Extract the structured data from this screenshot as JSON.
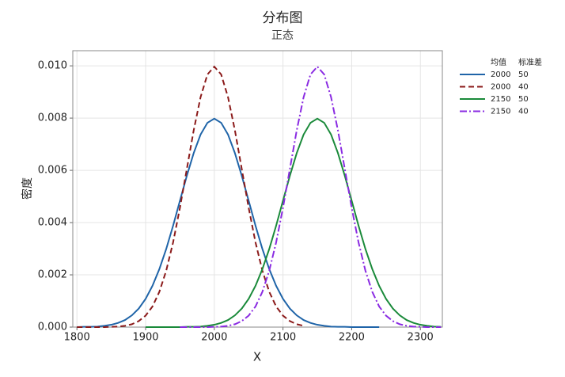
{
  "chart_data": {
    "type": "line",
    "title": "分布图",
    "subtitle": "正态",
    "x_label": "X",
    "y_label": "密度",
    "legend_headers": [
      "均值",
      "标准差"
    ],
    "x": [
      1800,
      1810,
      1820,
      1830,
      1840,
      1850,
      1860,
      1870,
      1880,
      1890,
      1900,
      1910,
      1920,
      1930,
      1940,
      1950,
      1960,
      1970,
      1980,
      1990,
      2000,
      2010,
      2020,
      2030,
      2040,
      2050,
      2060,
      2070,
      2080,
      2090,
      2100,
      2110,
      2120,
      2130,
      2140,
      2150,
      2160,
      2170,
      2180,
      2190,
      2200,
      2210,
      2220,
      2230,
      2240,
      2250,
      2260,
      2270,
      2280,
      2290,
      2300,
      2310,
      2320,
      2330
    ],
    "series": [
      {
        "mean": 2000,
        "sd": 50,
        "color": "#1f64a8",
        "dash": "solid",
        "values": [
          0,
          1e-05,
          1e-05,
          2e-05,
          5e-05,
          9e-05,
          0.00016,
          0.00027,
          0.00045,
          0.00071,
          0.00108,
          0.00158,
          0.00222,
          0.00299,
          0.00388,
          0.00484,
          0.00579,
          0.00666,
          0.00737,
          0.00782,
          0.00798,
          0.00782,
          0.00737,
          0.00666,
          0.00579,
          0.00484,
          0.00388,
          0.00299,
          0.00222,
          0.00158,
          0.00108,
          0.00071,
          0.00045,
          0.00027,
          0.00016,
          9e-05,
          5e-05,
          2e-05,
          1e-05,
          1e-05,
          0,
          0,
          0,
          0,
          0,
          null,
          null,
          null,
          null,
          null,
          null,
          null,
          null,
          null
        ]
      },
      {
        "mean": 2000,
        "sd": 40,
        "color": "#8b1a1a",
        "dash": "dashed",
        "values": [
          0,
          0,
          0,
          0,
          0,
          1e-05,
          2e-05,
          5e-05,
          0.00011,
          0.00023,
          0.00044,
          0.00079,
          0.00135,
          0.00216,
          0.00324,
          0.00457,
          0.00605,
          0.00753,
          0.0088,
          0.00967,
          0.00997,
          0.00967,
          0.0088,
          0.00753,
          0.00605,
          0.00457,
          0.00324,
          0.00216,
          0.00135,
          0.00079,
          0.00044,
          0.00023,
          0.00011,
          5e-05,
          null,
          null,
          null,
          null,
          null,
          null,
          null,
          null,
          null,
          null,
          null,
          null,
          null,
          null,
          null,
          null,
          null,
          null,
          null,
          null
        ]
      },
      {
        "mean": 2150,
        "sd": 50,
        "color": "#1a8a3a",
        "dash": "solid",
        "values": [
          null,
          null,
          null,
          null,
          null,
          null,
          null,
          null,
          null,
          null,
          0,
          0,
          0,
          0,
          0,
          0,
          1e-05,
          1e-05,
          2e-05,
          5e-05,
          9e-05,
          0.00016,
          0.00027,
          0.00045,
          0.00071,
          0.00108,
          0.00158,
          0.00222,
          0.00299,
          0.00388,
          0.00484,
          0.00579,
          0.00666,
          0.00737,
          0.00782,
          0.00798,
          0.00782,
          0.00737,
          0.00666,
          0.00579,
          0.00484,
          0.00388,
          0.00299,
          0.00222,
          0.00158,
          0.00108,
          0.00071,
          0.00045,
          0.00027,
          0.00016,
          9e-05,
          5e-05,
          2e-05,
          1e-05
        ]
      },
      {
        "mean": 2150,
        "sd": 40,
        "color": "#8a2be2",
        "dash": "dashdot",
        "values": [
          null,
          null,
          null,
          null,
          null,
          null,
          null,
          null,
          null,
          null,
          null,
          null,
          null,
          null,
          null,
          0,
          0,
          0,
          0,
          0,
          1e-05,
          2e-05,
          5e-05,
          0.00011,
          0.00023,
          0.00044,
          0.00079,
          0.00135,
          0.00216,
          0.00324,
          0.00457,
          0.00605,
          0.00753,
          0.0088,
          0.00967,
          0.00997,
          0.00967,
          0.0088,
          0.00753,
          0.00605,
          0.00457,
          0.00324,
          0.00216,
          0.00135,
          0.00079,
          0.00044,
          0.00023,
          0.00011,
          5e-05,
          2e-05,
          1e-05,
          0,
          0,
          0
        ]
      }
    ],
    "xlim": [
      1794,
      2332
    ],
    "ylim": [
      0,
      0.01058
    ],
    "xticks": [
      1800,
      1900,
      2000,
      2100,
      2200,
      2300
    ],
    "yticks": [
      {
        "value": 0,
        "label": "0.000"
      },
      {
        "value": 0.002,
        "label": "0.002"
      },
      {
        "value": 0.004,
        "label": "0.004"
      },
      {
        "value": 0.006,
        "label": "0.006"
      },
      {
        "value": 0.008,
        "label": "0.008"
      },
      {
        "value": 0.01,
        "label": "0.010"
      }
    ],
    "grid": true,
    "legend": "right"
  }
}
